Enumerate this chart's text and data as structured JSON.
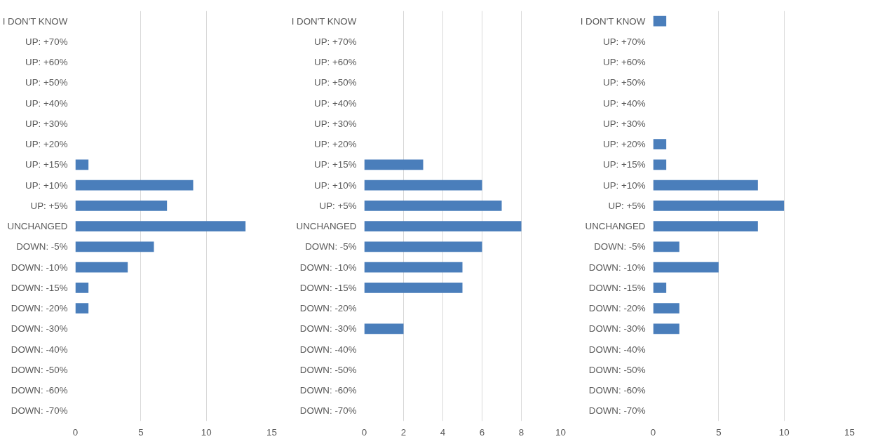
{
  "chart_data": [
    {
      "type": "bar",
      "orientation": "horizontal",
      "categories": [
        "I DON'T KNOW",
        "UP: +70%",
        "UP: +60%",
        "UP: +50%",
        "UP: +40%",
        "UP: +30%",
        "UP: +20%",
        "UP: +15%",
        "UP: +10%",
        "UP: +5%",
        "UNCHANGED",
        "DOWN: -5%",
        "DOWN: -10%",
        "DOWN: -15%",
        "DOWN: -20%",
        "DOWN: -30%",
        "DOWN: -40%",
        "DOWN: -50%",
        "DOWN: -60%",
        "DOWN: -70%"
      ],
      "series": [
        {
          "color": "#4a7ebb",
          "values": [
            null,
            null,
            null,
            null,
            null,
            null,
            null,
            1,
            9,
            7,
            13,
            6,
            4,
            1,
            1,
            null,
            null,
            null,
            null,
            null
          ]
        }
      ],
      "xlim": [
        0,
        15
      ],
      "xticks": [
        0,
        5,
        10,
        15
      ],
      "grid": "x"
    },
    {
      "type": "bar",
      "orientation": "horizontal",
      "categories": [
        "I DON'T KNOW",
        "UP: +70%",
        "UP: +60%",
        "UP: +50%",
        "UP: +40%",
        "UP: +30%",
        "UP: +20%",
        "UP: +15%",
        "UP: +10%",
        "UP: +5%",
        "UNCHANGED",
        "DOWN: -5%",
        "DOWN: -10%",
        "DOWN: -15%",
        "DOWN: -20%",
        "DOWN: -30%",
        "DOWN: -40%",
        "DOWN: -50%",
        "DOWN: -60%",
        "DOWN: -70%"
      ],
      "series": [
        {
          "color": "#4a7ebb",
          "values": [
            null,
            null,
            null,
            null,
            null,
            null,
            null,
            3,
            6,
            7,
            8,
            6,
            5,
            5,
            null,
            2,
            null,
            null,
            null,
            null
          ]
        }
      ],
      "xlim": [
        0,
        10
      ],
      "xticks": [
        0,
        2,
        4,
        6,
        8,
        10
      ],
      "grid": "x"
    },
    {
      "type": "bar",
      "orientation": "horizontal",
      "categories": [
        "I DON'T KNOW",
        "UP: +70%",
        "UP: +60%",
        "UP: +50%",
        "UP: +40%",
        "UP: +30%",
        "UP: +20%",
        "UP: +15%",
        "UP: +10%",
        "UP: +5%",
        "UNCHANGED",
        "DOWN: -5%",
        "DOWN: -10%",
        "DOWN: -15%",
        "DOWN: -20%",
        "DOWN: -30%",
        "DOWN: -40%",
        "DOWN: -50%",
        "DOWN: -60%",
        "DOWN: -70%"
      ],
      "series": [
        {
          "color": "#4a7ebb",
          "values": [
            1,
            null,
            null,
            null,
            null,
            null,
            1,
            1,
            8,
            10,
            8,
            2,
            5,
            1,
            2,
            2,
            null,
            null,
            null,
            null
          ]
        }
      ],
      "xlim": [
        0,
        15
      ],
      "xticks": [
        0,
        5,
        10,
        15
      ],
      "grid": "x"
    }
  ]
}
